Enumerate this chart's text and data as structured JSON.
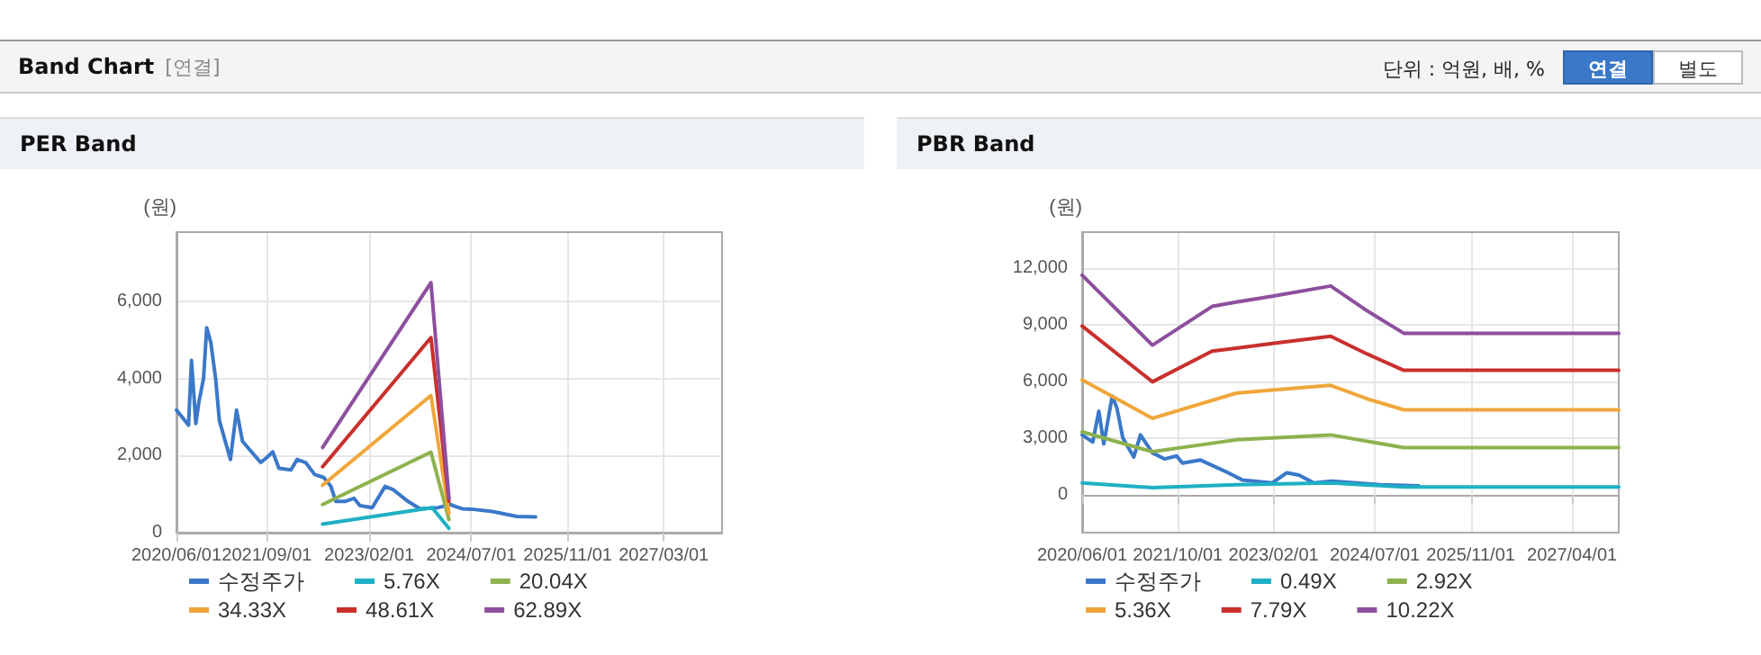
{
  "chart_data": [
    {
      "type": "other",
      "title": "Band Chart",
      "subtitle": "[연결]",
      "annotations": [
        "단위 : 억원, 배, %",
        "연결",
        "별도"
      ]
    },
    {
      "type": "line",
      "title": "PER Band",
      "ylabel": "(원)",
      "legend": "bottom",
      "grid": true,
      "marker": "none",
      "line_style": "solid",
      "xlim": [
        "2020-06-01",
        "2027-12-21"
      ],
      "xticks": [
        {
          "value": "2020-06-01",
          "label": "2020/06/01"
        },
        {
          "value": "2021-09-01",
          "label": "2021/09/01"
        },
        {
          "value": "2023-02-01",
          "label": "2023/02/01"
        },
        {
          "value": "2024-07-01",
          "label": "2024/07/01"
        },
        {
          "value": "2025-11-01",
          "label": "2025/11/01"
        },
        {
          "value": "2027-03-01",
          "label": "2027/03/01"
        }
      ],
      "ylim": [
        0,
        7800
      ],
      "yticks": [
        0,
        {
          "value": 2000,
          "label": "2,000"
        },
        {
          "value": 4000,
          "label": "4,000"
        },
        {
          "value": 6000,
          "label": "6,000"
        }
      ],
      "series": [
        {
          "name": "수정주가",
          "color": "#3a78c9",
          "x": [
            "2020-06-01",
            "2020-08-01",
            "2020-08-16",
            "2020-09-07",
            "2020-09-22",
            "2020-10-16",
            "2020-11-01",
            "2020-11-22",
            "2020-12-16",
            "2021-01-04",
            "2021-03-01",
            "2021-04-01",
            "2021-05-01",
            "2021-08-01",
            "2021-09-01",
            "2021-10-01",
            "2021-11-01",
            "2022-01-01",
            "2022-02-01",
            "2022-03-16",
            "2022-05-01",
            "2022-06-16",
            "2022-07-22",
            "2022-08-16",
            "2022-10-01",
            "2022-11-16",
            "2022-12-16",
            "2023-02-16",
            "2023-04-22",
            "2023-06-01",
            "2023-08-16",
            "2023-10-16",
            "2024-01-16",
            "2024-03-16",
            "2024-05-16",
            "2024-07-01",
            "2024-10-16",
            "2025-02-16",
            "2025-05-22"
          ],
          "values": [
            3180,
            2790,
            4470,
            2830,
            3380,
            4000,
            5320,
            4930,
            4000,
            2910,
            1900,
            3180,
            2370,
            1820,
            1950,
            2100,
            1670,
            1630,
            1900,
            1820,
            1510,
            1430,
            1200,
            810,
            810,
            890,
            700,
            650,
            1200,
            1120,
            810,
            620,
            650,
            730,
            620,
            610,
            550,
            420,
            410
          ]
        },
        {
          "name": "5.76X",
          "color": "#1eb0c4",
          "x": [
            "2022-06-10",
            "2023-12-16",
            "2024-03-10"
          ],
          "values": [
            220,
            650,
            110
          ]
        },
        {
          "name": "20.04X",
          "color": "#8db24e",
          "x": [
            "2022-06-10",
            "2023-12-10",
            "2024-03-10"
          ],
          "values": [
            730,
            2090,
            340
          ]
        },
        {
          "name": "34.33X",
          "color": "#f0a63a",
          "x": [
            "2022-06-10",
            "2023-12-10",
            "2024-03-10"
          ],
          "values": [
            1230,
            3560,
            500
          ]
        },
        {
          "name": "48.61X",
          "color": "#c9302c",
          "x": [
            "2022-06-10",
            "2023-12-10",
            "2024-03-10"
          ],
          "values": [
            1710,
            5060,
            810
          ]
        },
        {
          "name": "62.89X",
          "color": "#8e4f9e",
          "x": [
            "2022-06-10",
            "2023-12-10",
            "2024-03-10"
          ],
          "values": [
            2210,
            6490,
            890
          ]
        }
      ]
    },
    {
      "type": "line",
      "title": "PBR Band",
      "ylabel": "(원)",
      "legend": "bottom",
      "grid": true,
      "marker": "none",
      "line_style": "solid",
      "xlim": [
        "2020-06-01",
        "2027-11-25"
      ],
      "xticks": [
        {
          "value": "2020-06-01",
          "label": "2020/06/01"
        },
        {
          "value": "2021-10-01",
          "label": "2021/10/01"
        },
        {
          "value": "2023-02-01",
          "label": "2023/02/01"
        },
        {
          "value": "2024-07-01",
          "label": "2024/07/01"
        },
        {
          "value": "2025-11-01",
          "label": "2025/11/01"
        },
        {
          "value": "2027-04-01",
          "label": "2027/04/01"
        }
      ],
      "ylim": [
        -2000,
        13900
      ],
      "yticks": [
        0,
        {
          "value": 3000,
          "label": "3,000"
        },
        {
          "value": 6000,
          "label": "6,000"
        },
        {
          "value": 9000,
          "label": "9,000"
        },
        {
          "value": 12000,
          "label": "12,000"
        }
      ],
      "series": [
        {
          "name": "수정주가",
          "color": "#3a78c9",
          "x": [
            "2020-06-01",
            "2020-07-25",
            "2020-08-25",
            "2020-09-19",
            "2020-11-01",
            "2020-11-25",
            "2020-12-25",
            "2021-02-19",
            "2021-03-25",
            "2021-05-25",
            "2021-07-25",
            "2021-09-25",
            "2021-10-25",
            "2022-01-25",
            "2022-05-25",
            "2022-08-25",
            "2023-01-25",
            "2023-04-10",
            "2023-06-10",
            "2023-08-25",
            "2023-11-25",
            "2024-03-25",
            "2024-07-25",
            "2025-02-10"
          ],
          "values": [
            3170,
            2790,
            4430,
            2690,
            5220,
            4590,
            3010,
            2000,
            3170,
            2220,
            1900,
            2060,
            1680,
            1840,
            1270,
            790,
            630,
            1170,
            1050,
            630,
            730,
            630,
            540,
            480
          ]
        },
        {
          "name": "0.49X",
          "color": "#1eb0c4",
          "x": [
            "2020-06-01",
            "2021-05-25",
            "2022-07-25",
            "2023-11-19",
            "2024-11-25",
            "2027-11-25"
          ],
          "values": [
            630,
            380,
            540,
            630,
            410,
            410
          ]
        },
        {
          "name": "2.92X",
          "color": "#8db24e",
          "x": [
            "2020-06-01",
            "2021-05-25",
            "2022-07-25",
            "2023-01-25",
            "2023-11-19",
            "2024-11-25",
            "2027-11-25"
          ],
          "values": [
            3330,
            2280,
            2910,
            3010,
            3170,
            2500,
            2500
          ]
        },
        {
          "name": "5.36X",
          "color": "#f0a63a",
          "x": [
            "2020-06-01",
            "2021-05-25",
            "2022-07-25",
            "2023-01-25",
            "2023-11-19",
            "2024-05-25",
            "2024-11-25",
            "2027-11-25"
          ],
          "values": [
            6080,
            4050,
            5380,
            5540,
            5790,
            5070,
            4500,
            4500
          ]
        },
        {
          "name": "7.79X",
          "color": "#c9302c",
          "x": [
            "2020-06-01",
            "2021-05-25",
            "2022-03-25",
            "2022-07-25",
            "2023-01-25",
            "2023-11-19",
            "2024-05-25",
            "2024-11-25",
            "2027-11-25"
          ],
          "values": [
            8930,
            5980,
            7600,
            7760,
            8010,
            8390,
            7440,
            6590,
            6590
          ]
        },
        {
          "name": "10.22X",
          "color": "#8e4f9e",
          "x": [
            "2020-06-01",
            "2021-05-25",
            "2022-03-25",
            "2022-07-25",
            "2023-01-25",
            "2023-11-19",
            "2024-05-25",
            "2024-11-25",
            "2027-11-25"
          ],
          "values": [
            11620,
            7920,
            9970,
            10200,
            10510,
            11050,
            9720,
            8550,
            8550
          ]
        }
      ]
    }
  ]
}
